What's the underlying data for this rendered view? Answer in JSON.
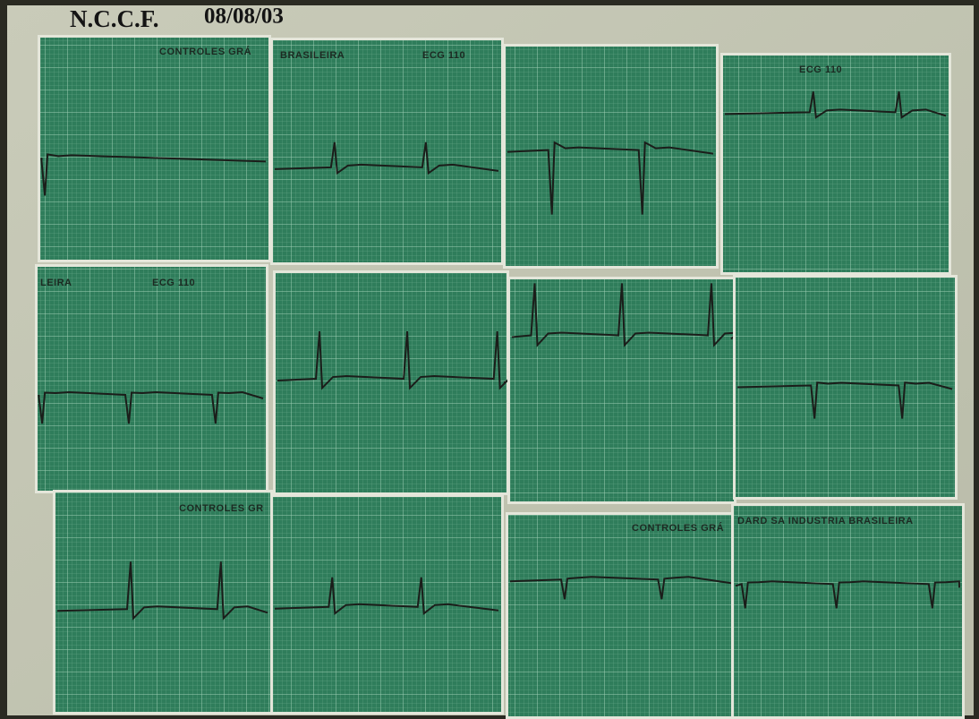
{
  "header": {
    "title": "N.C.C.F.",
    "date": "08/08/03"
  },
  "strips": [
    "CONTROLES GRÁ",
    "BRASILEIRA",
    "ECG 110",
    "ECG 110",
    "LEIRA",
    "ECG 110",
    "CONTROLES GR",
    "CONTROLES GRÁ",
    "DARD SA INDUSTRIA BRASILEIRA"
  ]
}
